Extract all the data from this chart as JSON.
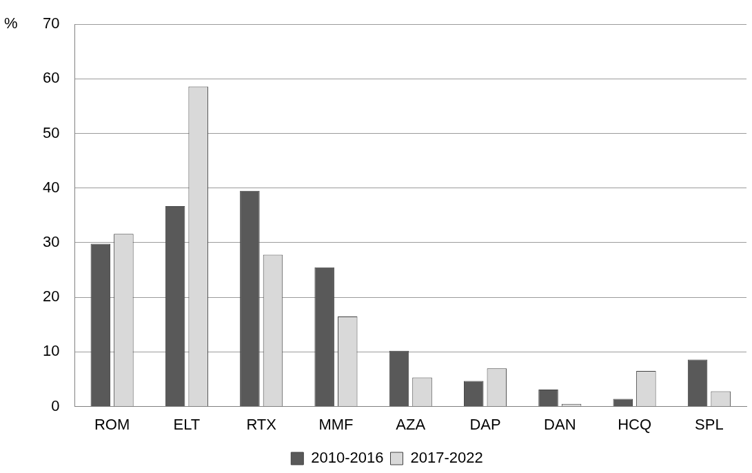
{
  "chart_data": {
    "type": "bar",
    "ylabel": "%",
    "categories": [
      "ROM",
      "ELT",
      "RTX",
      "MMF",
      "AZA",
      "DAP",
      "DAN",
      "HCQ",
      "SPL"
    ],
    "series": [
      {
        "name": "2010-2016",
        "color": "#595959",
        "values": [
          29.8,
          36.7,
          39.5,
          25.5,
          10.2,
          4.7,
          3.1,
          1.4,
          8.6
        ]
      },
      {
        "name": "2017-2022",
        "color": "#d9d9d9",
        "values": [
          31.6,
          58.6,
          27.8,
          16.5,
          5.3,
          7.0,
          0.5,
          6.5,
          2.8
        ]
      }
    ],
    "ylim": [
      0,
      70
    ],
    "yticks": [
      0,
      10,
      20,
      30,
      40,
      50,
      60,
      70
    ],
    "grid": "y",
    "legend": "bottom"
  }
}
